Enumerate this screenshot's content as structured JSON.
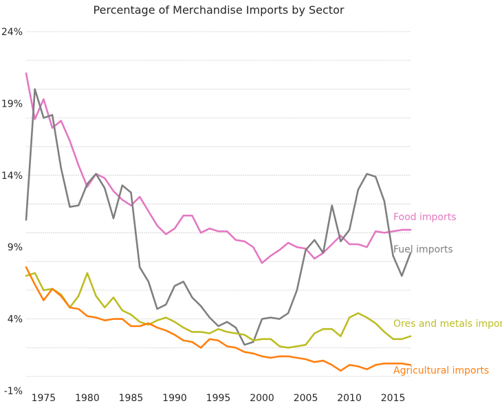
{
  "chart_data": {
    "type": "line",
    "title": "Percentage of Merchandise Imports  by Sector",
    "xlabel": "",
    "ylabel": "",
    "xlim": [
      1973,
      2017
    ],
    "ylim": [
      -1,
      24
    ],
    "x_ticks": [
      1975,
      1980,
      1985,
      1990,
      1995,
      2000,
      2005,
      2010,
      2015
    ],
    "y_ticks": [
      -1,
      4,
      9,
      14,
      19,
      24
    ],
    "y_tick_labels": [
      "-1%",
      "4%",
      "9%",
      "14%",
      "19%",
      "24%"
    ],
    "grid": "horizontal dotted, every 2 units",
    "legend": "none (series labels at right end of lines)",
    "x": [
      1973,
      1974,
      1975,
      1976,
      1977,
      1978,
      1979,
      1980,
      1981,
      1982,
      1983,
      1984,
      1985,
      1986,
      1987,
      1988,
      1989,
      1990,
      1991,
      1992,
      1993,
      1994,
      1995,
      1996,
      1997,
      1998,
      1999,
      2000,
      2001,
      2002,
      2003,
      2004,
      2005,
      2006,
      2007,
      2008,
      2009,
      2010,
      2011,
      2012,
      2013,
      2014,
      2015,
      2016,
      2017
    ],
    "series": [
      {
        "name": "Food imports",
        "color": "#e377c2",
        "values": [
          21.1,
          17.9,
          19.3,
          17.3,
          17.8,
          16.4,
          14.7,
          13.2,
          14.1,
          13.8,
          12.9,
          12.3,
          11.9,
          12.5,
          11.5,
          10.5,
          9.9,
          10.3,
          11.2,
          11.2,
          10.0,
          10.3,
          10.1,
          10.1,
          9.5,
          9.4,
          9.0,
          7.9,
          8.4,
          8.8,
          9.3,
          9.0,
          8.9,
          8.2,
          8.6,
          9.2,
          9.8,
          9.2,
          9.2,
          9.0,
          10.1,
          10.0,
          10.1,
          10.2,
          10.2
        ]
      },
      {
        "name": "Fuel imports",
        "color": "#7f7f7f",
        "values": [
          10.9,
          20.0,
          18.0,
          18.2,
          14.5,
          11.8,
          11.9,
          13.4,
          14.1,
          13.1,
          11.0,
          13.3,
          12.8,
          7.6,
          6.6,
          4.7,
          5.0,
          6.3,
          6.6,
          5.5,
          4.9,
          4.1,
          3.5,
          3.8,
          3.4,
          2.2,
          2.4,
          4.0,
          4.1,
          4.0,
          4.4,
          6.0,
          8.8,
          9.5,
          8.6,
          11.9,
          9.4,
          10.2,
          13.0,
          14.1,
          13.9,
          12.2,
          8.4,
          7.0,
          8.6
        ]
      },
      {
        "name": "Ores and metals imports",
        "color": "#bcbd22",
        "values": [
          7.0,
          7.2,
          6.0,
          6.1,
          5.7,
          4.8,
          5.6,
          7.2,
          5.6,
          4.8,
          5.5,
          4.6,
          4.3,
          3.8,
          3.6,
          3.9,
          4.1,
          3.8,
          3.4,
          3.1,
          3.1,
          3.0,
          3.3,
          3.1,
          3.0,
          2.9,
          2.5,
          2.6,
          2.6,
          2.1,
          2.0,
          2.1,
          2.2,
          3.0,
          3.3,
          3.3,
          2.8,
          4.1,
          4.4,
          4.1,
          3.7,
          3.1,
          2.6,
          2.6,
          2.8
        ]
      },
      {
        "name": "Agricultural imports",
        "color": "#ff7f0e",
        "values": [
          7.6,
          6.4,
          5.3,
          6.1,
          5.6,
          4.8,
          4.7,
          4.2,
          4.1,
          3.9,
          4.0,
          4.0,
          3.5,
          3.5,
          3.7,
          3.4,
          3.2,
          2.9,
          2.5,
          2.4,
          2.0,
          2.6,
          2.5,
          2.1,
          2.0,
          1.7,
          1.6,
          1.4,
          1.3,
          1.4,
          1.4,
          1.3,
          1.2,
          1.0,
          1.1,
          0.8,
          0.4,
          0.8,
          0.7,
          0.5,
          0.8,
          0.9,
          0.9,
          0.9,
          0.8
        ]
      }
    ]
  }
}
